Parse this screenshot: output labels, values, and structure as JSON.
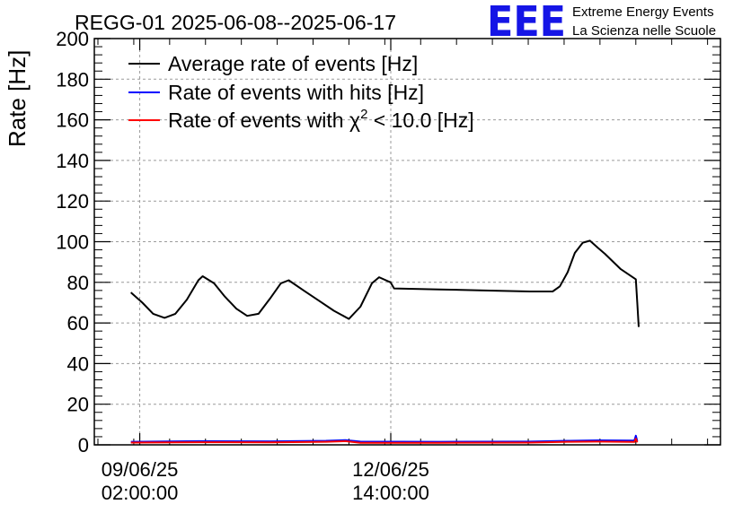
{
  "chart_data": {
    "type": "line",
    "title": "REGG-01 2025-06-08--2025-06-17",
    "xlabel": "",
    "ylabel": "Rate [Hz]",
    "x_unit": "days since 2025-06-08 00:00:00",
    "xlim": [
      0.45,
      9.18
    ],
    "ylim": [
      0,
      200
    ],
    "yticks": [
      0,
      20,
      40,
      60,
      80,
      100,
      120,
      140,
      160,
      180,
      200
    ],
    "xticks": [
      {
        "x": 1.0833,
        "line1": "09/06/25",
        "line2": "02:00:00"
      },
      {
        "x": 4.5833,
        "line1": "12/06/25",
        "line2": "14:00:00"
      }
    ],
    "grid": true,
    "legend_position": "top-left",
    "series": [
      {
        "name": "Average rate of events [Hz]",
        "color": "#000000",
        "points": [
          [
            0.96,
            75
          ],
          [
            1.12,
            70
          ],
          [
            1.27,
            64.5
          ],
          [
            1.43,
            62.5
          ],
          [
            1.58,
            64.5
          ],
          [
            1.74,
            71.5
          ],
          [
            1.9,
            81
          ],
          [
            1.96,
            83
          ],
          [
            2.12,
            79.5
          ],
          [
            2.27,
            73
          ],
          [
            2.43,
            67
          ],
          [
            2.58,
            63.5
          ],
          [
            2.74,
            64.5
          ],
          [
            2.9,
            72
          ],
          [
            3.05,
            79.5
          ],
          [
            3.16,
            81
          ],
          [
            3.37,
            76
          ],
          [
            3.58,
            71
          ],
          [
            3.79,
            66
          ],
          [
            4.0,
            62
          ],
          [
            4.16,
            68
          ],
          [
            4.32,
            79.5
          ],
          [
            4.42,
            82.5
          ],
          [
            4.58,
            80
          ],
          [
            4.63,
            77
          ],
          [
            5.26,
            76.5
          ],
          [
            5.89,
            76
          ],
          [
            6.52,
            75.5
          ],
          [
            6.84,
            75.5
          ],
          [
            6.94,
            78
          ],
          [
            7.05,
            85
          ],
          [
            7.15,
            94.5
          ],
          [
            7.26,
            99.5
          ],
          [
            7.36,
            100.5
          ],
          [
            7.47,
            97
          ],
          [
            7.57,
            94
          ],
          [
            7.79,
            86.5
          ],
          [
            8.0,
            81.5
          ],
          [
            8.02,
            70
          ],
          [
            8.04,
            58
          ]
        ]
      },
      {
        "name": "Rate of events with hits [Hz]",
        "color": "#0000ff",
        "points": [
          [
            0.96,
            1.5
          ],
          [
            1.9,
            1.8
          ],
          [
            2.9,
            1.7
          ],
          [
            3.68,
            2.0
          ],
          [
            3.95,
            2.3
          ],
          [
            4.16,
            1.6
          ],
          [
            5.26,
            1.5
          ],
          [
            6.52,
            1.6
          ],
          [
            7.05,
            2.0
          ],
          [
            7.47,
            2.2
          ],
          [
            7.98,
            2.1
          ],
          [
            8.0,
            4.5
          ],
          [
            8.02,
            1.8
          ]
        ]
      },
      {
        "name": "Rate of events with χ² < 10.0 [Hz]",
        "legend_base": "Rate of events with χ",
        "legend_sup": "2",
        "legend_tail": " < 10.0 [Hz]",
        "color": "#ff0000",
        "points": [
          [
            0.96,
            1.1
          ],
          [
            1.9,
            1.3
          ],
          [
            2.9,
            1.2
          ],
          [
            3.68,
            1.5
          ],
          [
            3.95,
            1.8
          ],
          [
            4.16,
            1.0
          ],
          [
            5.26,
            1.0
          ],
          [
            6.52,
            1.1
          ],
          [
            7.05,
            1.5
          ],
          [
            7.47,
            1.6
          ],
          [
            7.98,
            1.4
          ],
          [
            8.0,
            3.0
          ],
          [
            8.02,
            1.2
          ]
        ]
      }
    ]
  },
  "logo": {
    "letters": "EEE",
    "line1": "Extreme Energy Events",
    "line2": "La Scienza nelle Scuole",
    "color": "#1515e6"
  }
}
